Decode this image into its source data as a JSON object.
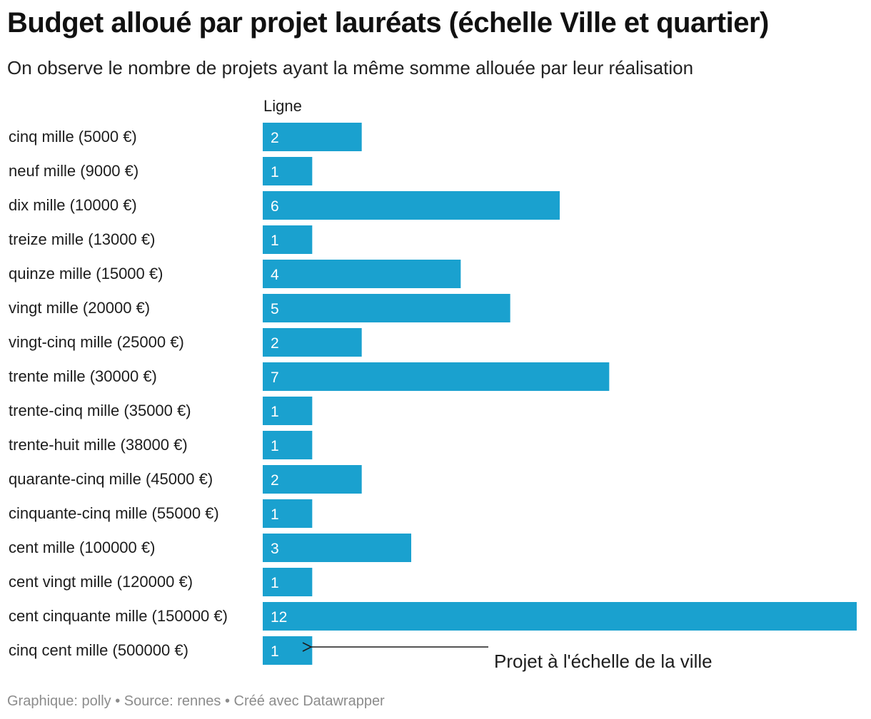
{
  "chart_data": {
    "type": "bar",
    "title": "Budget alloué par projet lauréats (échelle Ville et quartier)",
    "subtitle": "On observe le nombre de projets ayant la même somme allouée par leur réalisation",
    "column_header": "Ligne",
    "categories": [
      "cinq mille (5000 €)",
      "neuf mille (9000 €)",
      "dix mille (10000 €)",
      "treize mille (13000 €)",
      "quinze mille (15000 €)",
      "vingt mille (20000 €)",
      "vingt-cinq mille (25000 €)",
      "trente mille (30000 €)",
      "trente-cinq mille (35000 €)",
      "trente-huit mille (38000 €)",
      "quarante-cinq mille (45000 €)",
      "cinquante-cinq mille (55000 €)",
      "cent mille (100000 €)",
      "cent vingt mille (120000 €)",
      "cent cinquante mille (150000 €)",
      "cinq cent mille (500000 €)"
    ],
    "values": [
      2,
      1,
      6,
      1,
      4,
      5,
      2,
      7,
      1,
      1,
      2,
      1,
      3,
      1,
      12,
      1
    ],
    "xlim": [
      0,
      12
    ],
    "bar_color": "#1aa1cf",
    "annotation": {
      "text": "Projet à l'échelle de la ville",
      "target_category": "cinq cent mille (500000 €)"
    }
  },
  "footer": "Graphique: polly • Source: rennes • Créé avec Datawrapper"
}
